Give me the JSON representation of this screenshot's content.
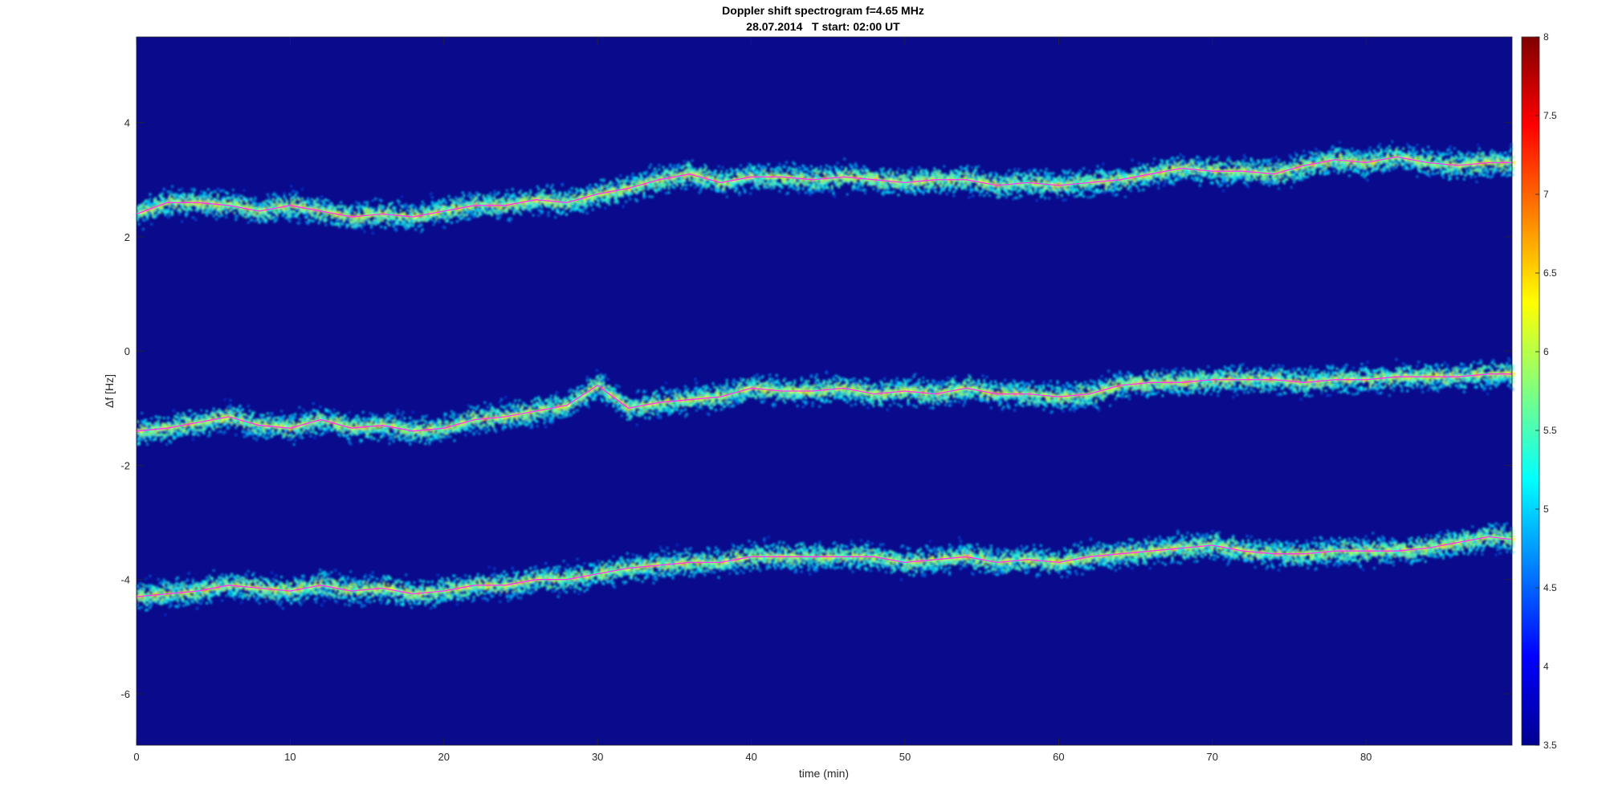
{
  "chart_data": {
    "type": "heatmap",
    "title": "Doppler shift spectrogram f=4.65 MHz",
    "subtitle": "28.07.2014   T start: 02:00 UT",
    "xlabel": "time (min)",
    "ylabel": "Δf [Hz]",
    "xlim": [
      0,
      89.5
    ],
    "ylim": [
      -6.9,
      5.5
    ],
    "xticks": [
      0,
      10,
      20,
      30,
      40,
      50,
      60,
      70,
      80
    ],
    "yticks": [
      -6,
      -4,
      -2,
      0,
      2,
      4
    ],
    "colormap": "jet",
    "background_color": "#0a0a8c",
    "trace_color": "#ff33ff",
    "colorbar": {
      "range": [
        3.5,
        8
      ],
      "ticks": [
        3.5,
        4,
        4.5,
        5,
        5.5,
        6,
        6.5,
        7,
        7.5,
        8
      ]
    },
    "series": [
      {
        "x": [
          0,
          2,
          4,
          6,
          8,
          10,
          12,
          14,
          16,
          18,
          20,
          22,
          24,
          26,
          28,
          30,
          32,
          34,
          36,
          38,
          40,
          42,
          44,
          46,
          48,
          50,
          52,
          54,
          56,
          58,
          60,
          62,
          64,
          66,
          68,
          70,
          72,
          74,
          76,
          78,
          80,
          82,
          84,
          86,
          88,
          89.5
        ],
        "y": [
          2.4,
          2.6,
          2.6,
          2.55,
          2.45,
          2.55,
          2.45,
          2.35,
          2.4,
          2.35,
          2.45,
          2.55,
          2.55,
          2.65,
          2.6,
          2.75,
          2.85,
          3.0,
          3.1,
          2.95,
          3.05,
          3.05,
          3.0,
          3.05,
          3.0,
          2.95,
          3.0,
          3.0,
          2.9,
          2.95,
          2.9,
          2.95,
          3.0,
          3.1,
          3.2,
          3.15,
          3.15,
          3.1,
          3.25,
          3.35,
          3.3,
          3.4,
          3.3,
          3.25,
          3.3,
          3.3
        ]
      },
      {
        "x": [
          0,
          2,
          4,
          6,
          8,
          10,
          12,
          14,
          16,
          18,
          20,
          22,
          24,
          26,
          28,
          30,
          32,
          34,
          36,
          38,
          40,
          42,
          44,
          46,
          48,
          50,
          52,
          54,
          56,
          58,
          60,
          62,
          64,
          66,
          68,
          70,
          72,
          74,
          76,
          78,
          80,
          82,
          84,
          86,
          88,
          89.5
        ],
        "y": [
          -1.4,
          -1.35,
          -1.25,
          -1.15,
          -1.3,
          -1.35,
          -1.2,
          -1.35,
          -1.3,
          -1.4,
          -1.35,
          -1.2,
          -1.15,
          -1.05,
          -0.95,
          -0.6,
          -1.0,
          -0.9,
          -0.85,
          -0.8,
          -0.65,
          -0.7,
          -0.7,
          -0.65,
          -0.75,
          -0.7,
          -0.75,
          -0.65,
          -0.75,
          -0.75,
          -0.8,
          -0.75,
          -0.6,
          -0.55,
          -0.55,
          -0.5,
          -0.5,
          -0.5,
          -0.55,
          -0.5,
          -0.5,
          -0.45,
          -0.45,
          -0.45,
          -0.4,
          -0.4
        ]
      },
      {
        "x": [
          0,
          2,
          4,
          6,
          8,
          10,
          12,
          14,
          16,
          18,
          20,
          22,
          24,
          26,
          28,
          30,
          32,
          34,
          36,
          38,
          40,
          42,
          44,
          46,
          48,
          50,
          52,
          54,
          56,
          58,
          60,
          62,
          64,
          66,
          68,
          70,
          72,
          74,
          76,
          78,
          80,
          82,
          84,
          86,
          88,
          89.5
        ],
        "y": [
          -4.3,
          -4.25,
          -4.2,
          -4.1,
          -4.15,
          -4.2,
          -4.1,
          -4.2,
          -4.15,
          -4.25,
          -4.2,
          -4.1,
          -4.1,
          -4.0,
          -4.0,
          -3.9,
          -3.8,
          -3.75,
          -3.7,
          -3.7,
          -3.6,
          -3.6,
          -3.6,
          -3.6,
          -3.6,
          -3.7,
          -3.65,
          -3.6,
          -3.7,
          -3.65,
          -3.7,
          -3.6,
          -3.55,
          -3.5,
          -3.45,
          -3.4,
          -3.5,
          -3.55,
          -3.55,
          -3.5,
          -3.5,
          -3.5,
          -3.45,
          -3.35,
          -3.25,
          -3.3
        ]
      }
    ]
  }
}
